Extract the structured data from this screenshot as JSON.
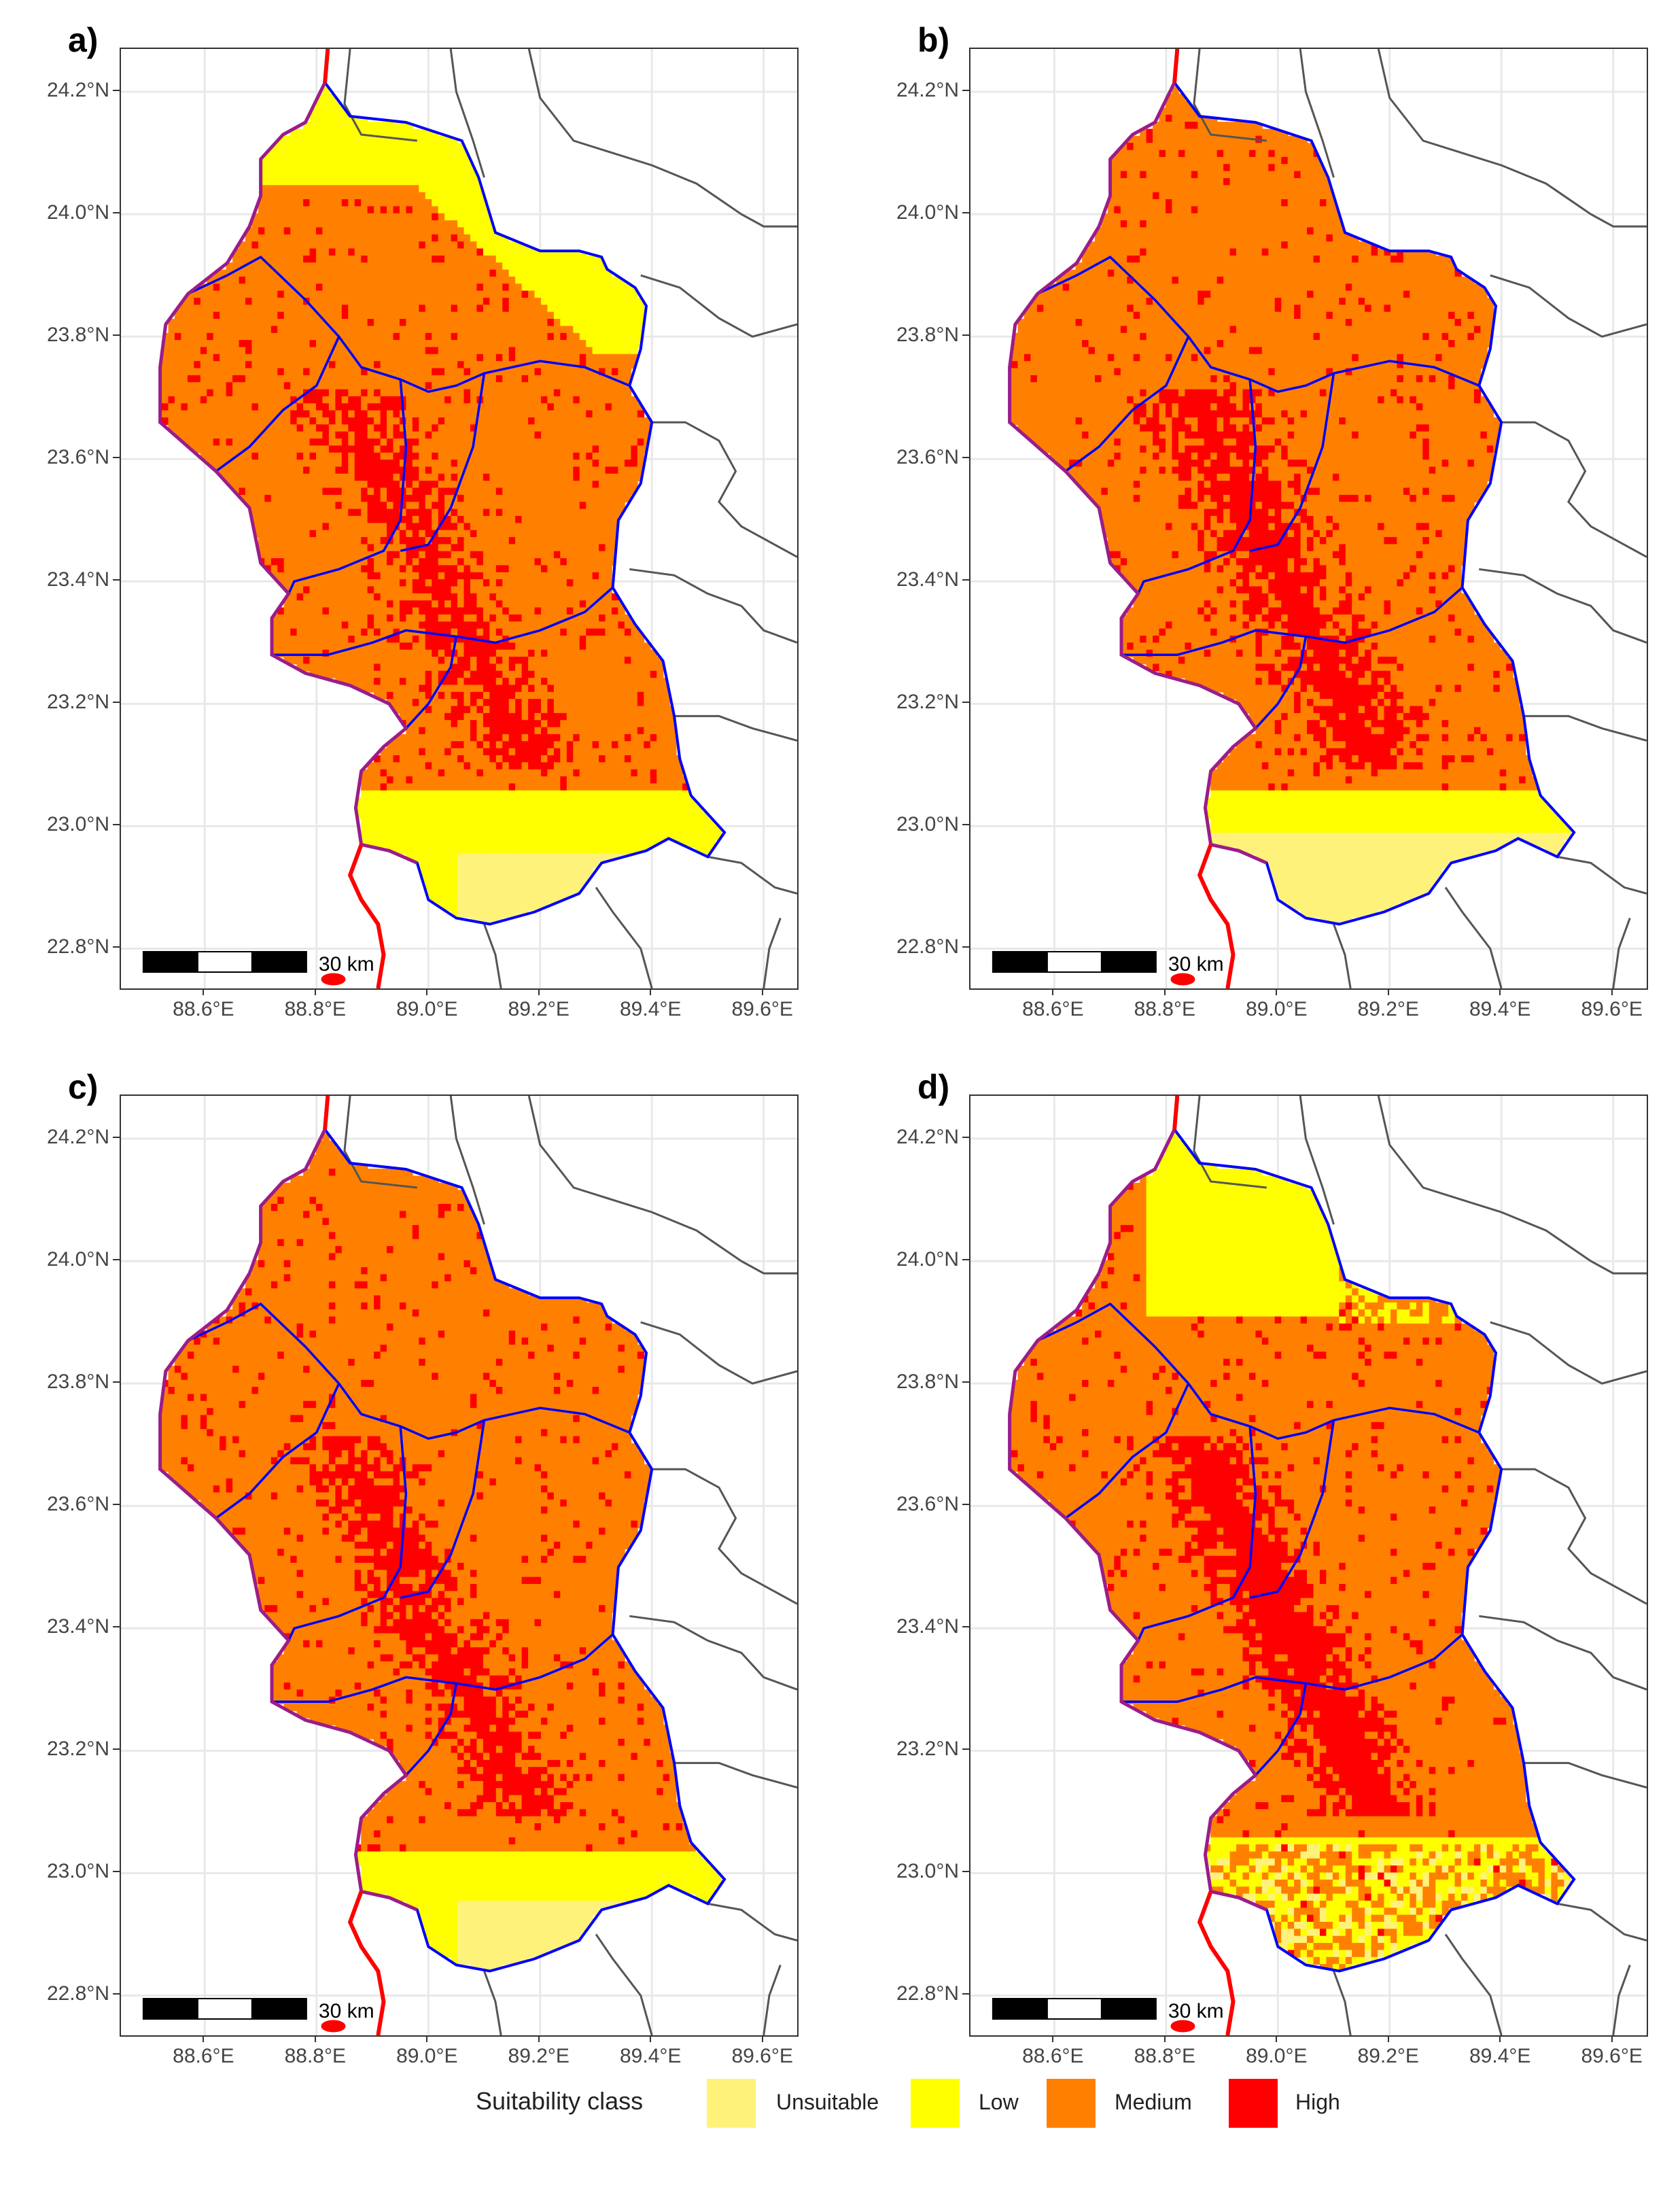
{
  "panels": [
    {
      "label": "a)",
      "variant": 0
    },
    {
      "label": "b)",
      "variant": 1
    },
    {
      "label": "c)",
      "variant": 2
    },
    {
      "label": "d)",
      "variant": 3
    }
  ],
  "axes": {
    "lat_ticks": [
      "24.2°N",
      "24.0°N",
      "23.8°N",
      "23.6°N",
      "23.4°N",
      "23.2°N",
      "23.0°N",
      "22.8°N"
    ],
    "lon_ticks": [
      "88.6°E",
      "88.8°E",
      "89.0°E",
      "89.2°E",
      "89.4°E",
      "89.6°E"
    ],
    "lat_values": [
      24.2,
      24.0,
      23.8,
      23.6,
      23.4,
      23.2,
      23.0,
      22.8
    ],
    "lon_values": [
      88.6,
      88.8,
      89.0,
      89.2,
      89.4,
      89.6
    ],
    "lat_range": [
      22.735,
      24.27
    ],
    "lon_range": [
      88.45,
      89.66
    ]
  },
  "scale_bar": {
    "label": "30 km"
  },
  "legend": {
    "title": "Suitability class",
    "items": [
      {
        "label": "Unsuitable",
        "color": "#fff27a"
      },
      {
        "label": "Low",
        "color": "#ffff00"
      },
      {
        "label": "Medium",
        "color": "#ff8000"
      },
      {
        "label": "High",
        "color": "#ff0000"
      }
    ]
  },
  "colors": {
    "district_boundary": "#0000ff",
    "outer_boundary": "#ff0000",
    "admin_boundary": "#555555",
    "grid": "#e8e8e8"
  }
}
